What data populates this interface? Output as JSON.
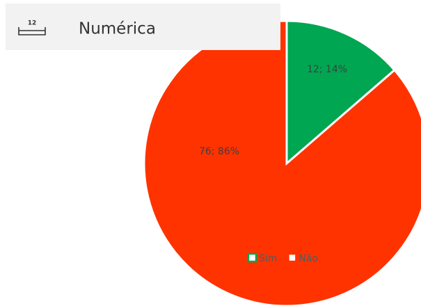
{
  "menu_item": {
    "icon_text": "12",
    "label": "Numérica"
  },
  "chart_data": {
    "type": "pie",
    "categories": [
      "Sim",
      "Não"
    ],
    "values": [
      12,
      76
    ],
    "value_labels": [
      "12; 14%",
      "76; 86%"
    ],
    "colors": [
      "#00a651",
      "#ff3300"
    ],
    "legend": "bottom"
  }
}
